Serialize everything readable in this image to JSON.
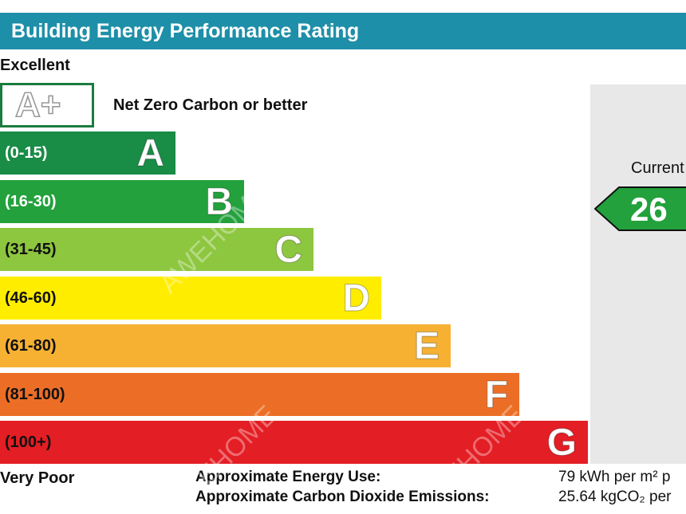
{
  "header": {
    "title": "Building Energy Performance Rating"
  },
  "labels": {
    "excellent": "Excellent",
    "very_poor": "Very Poor"
  },
  "aplus": {
    "letter": "A+",
    "description": "Net Zero Carbon or better"
  },
  "chart_data": {
    "type": "bar",
    "categories": [
      "A",
      "B",
      "C",
      "D",
      "E",
      "F",
      "G"
    ],
    "ranges": [
      "(0-15)",
      "(16-30)",
      "(31-45)",
      "(46-60)",
      "(61-80)",
      "(81-100)",
      "(100+)"
    ],
    "colors": [
      "#198c46",
      "#22a13c",
      "#8dc63f",
      "#ffed00",
      "#f6b133",
      "#ec6e26",
      "#e31e24"
    ],
    "current": {
      "label": "Current",
      "value": 26,
      "band": "B",
      "color": "#22a13c"
    }
  },
  "metrics": [
    {
      "label": "Approximate Energy Use:",
      "value": "79 kWh per m² p"
    },
    {
      "label": "Approximate Carbon Dioxide Emissions:",
      "value": "25.64 kgCO₂ per"
    }
  ],
  "watermarks": [
    "AWEHOME",
    "EHOME",
    "EHOME"
  ]
}
